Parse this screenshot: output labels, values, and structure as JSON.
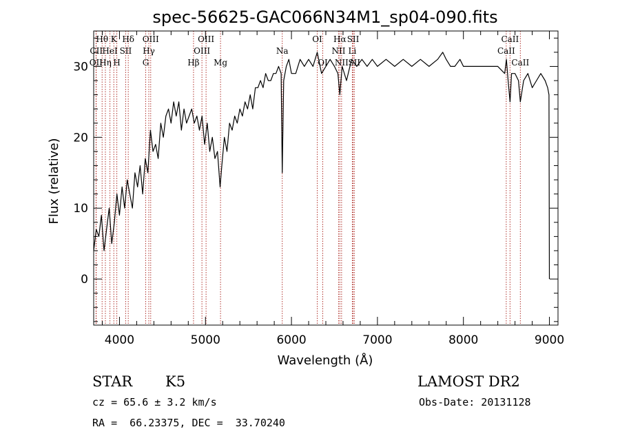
{
  "colors": {
    "axes": "#000000",
    "spectrum": "#000000",
    "line_markers": "#b0302a",
    "background": "#ffffff"
  },
  "chart_data": {
    "type": "line",
    "title": "spec-56625-GAC066N34M1_sp04-090.fits",
    "xlabel": "Wavelength (Å)",
    "ylabel": "Flux (relative)",
    "xlim": [
      3700,
      9100
    ],
    "ylim": [
      -6.5,
      35
    ],
    "x_ticks": [
      4000,
      5000,
      6000,
      7000,
      8000,
      9000
    ],
    "y_ticks": [
      0,
      10,
      20,
      30
    ],
    "x_minor_step": 200,
    "y_minor_step": 2,
    "grid": false,
    "series": [
      {
        "x": [
          3700,
          3730,
          3760,
          3790,
          3820,
          3850,
          3880,
          3910,
          3940,
          3970,
          4000,
          4030,
          4060,
          4090,
          4120,
          4150,
          4180,
          4210,
          4240,
          4270,
          4300,
          4330,
          4360,
          4390,
          4420,
          4450,
          4480,
          4510,
          4540,
          4570,
          4600,
          4630,
          4660,
          4690,
          4720,
          4750,
          4780,
          4810,
          4840,
          4870,
          4900,
          4930,
          4960,
          4990,
          5020,
          5050,
          5080,
          5110,
          5140,
          5170,
          5190,
          5220,
          5250,
          5280,
          5310,
          5340,
          5370,
          5400,
          5430,
          5460,
          5490,
          5520,
          5550,
          5580,
          5610,
          5640,
          5670,
          5700,
          5730,
          5760,
          5790,
          5820,
          5850,
          5880,
          5893,
          5910,
          5940,
          5970,
          6000,
          6050,
          6100,
          6150,
          6200,
          6250,
          6300,
          6350,
          6400,
          6450,
          6500,
          6540,
          6563,
          6590,
          6640,
          6700,
          6760,
          6820,
          6880,
          6940,
          7000,
          7100,
          7200,
          7300,
          7400,
          7500,
          7600,
          7700,
          7760,
          7800,
          7850,
          7900,
          7960,
          8000,
          8100,
          8200,
          8300,
          8400,
          8480,
          8500,
          8520,
          8542,
          8560,
          8600,
          8640,
          8662,
          8700,
          8750,
          8800,
          8850,
          8900,
          8950,
          8980,
          8995,
          9000
        ],
        "y": [
          4,
          7,
          6,
          9,
          4,
          7,
          10,
          5,
          8,
          12,
          9,
          13,
          10,
          14,
          12,
          10,
          15,
          13,
          16,
          12,
          17,
          15,
          21,
          18,
          19,
          17,
          22,
          20,
          23,
          24,
          22,
          25,
          23,
          25,
          21,
          24,
          22,
          23,
          24,
          22,
          23,
          21,
          23,
          19,
          22,
          18,
          20,
          17,
          18,
          13,
          16,
          20,
          18,
          22,
          21,
          23,
          22,
          24,
          23,
          25,
          24,
          26,
          24,
          27,
          27,
          28,
          27,
          29,
          28,
          28,
          29,
          29,
          30,
          29,
          15,
          28,
          30,
          31,
          29,
          29,
          31,
          30,
          31,
          30,
          32,
          29,
          30,
          31,
          30,
          29,
          26,
          30,
          28,
          31,
          30,
          31,
          30,
          31,
          30,
          31,
          30,
          31,
          30,
          31,
          30,
          31,
          32,
          31,
          30,
          30,
          31,
          30,
          30,
          30,
          30,
          30,
          29,
          31,
          28,
          25,
          29,
          29,
          28,
          25,
          28,
          29,
          27,
          28,
          29,
          28,
          27,
          26,
          0
        ]
      }
    ],
    "spectral_lines": [
      {
        "name": "Hθ",
        "wave": 3798,
        "row": 1
      },
      {
        "name": "CII",
        "wave": 3730,
        "row": 2
      },
      {
        "name": "OII",
        "wave": 3727,
        "row": 3
      },
      {
        "name": "Hη",
        "wave": 3836,
        "row": 3
      },
      {
        "name": "HeI",
        "wave": 3889,
        "row": 2
      },
      {
        "name": "K",
        "wave": 3934,
        "row": 1
      },
      {
        "name": "H",
        "wave": 3969,
        "row": 3
      },
      {
        "name": "SII",
        "wave": 4072,
        "row": 2
      },
      {
        "name": "Hδ",
        "wave": 4102,
        "row": 1
      },
      {
        "name": "OIII",
        "wave": 4363,
        "row": 1
      },
      {
        "name": "Hγ",
        "wave": 4341,
        "row": 2
      },
      {
        "name": "G",
        "wave": 4305,
        "row": 3
      },
      {
        "name": "Hβ",
        "wave": 4861,
        "row": 3
      },
      {
        "name": "OIII",
        "wave": 5007,
        "row": 1
      },
      {
        "name": "OIII",
        "wave": 4959,
        "row": 2
      },
      {
        "name": "Mg",
        "wave": 5175,
        "row": 3
      },
      {
        "name": "Na",
        "wave": 5893,
        "row": 2
      },
      {
        "name": "OI",
        "wave": 6300,
        "row": 1
      },
      {
        "name": "OI",
        "wave": 6364,
        "row": 3
      },
      {
        "name": "Hα",
        "wave": 6563,
        "row": 1
      },
      {
        "name": "NII",
        "wave": 6548,
        "row": 2
      },
      {
        "name": "NII",
        "wave": 6583,
        "row": 3
      },
      {
        "name": "SII",
        "wave": 6717,
        "row": 1
      },
      {
        "name": "Li",
        "wave": 6708,
        "row": 2
      },
      {
        "name": "SII",
        "wave": 6731,
        "row": 3
      },
      {
        "name": "CaII",
        "wave": 8542,
        "row": 1
      },
      {
        "name": "CaII",
        "wave": 8498,
        "row": 2
      },
      {
        "name": "CaII",
        "wave": 8662,
        "row": 3
      }
    ]
  },
  "info": {
    "class_label": "STAR",
    "subclass": "K5",
    "survey": "LAMOST DR2",
    "cz_line": "cz = 65.6 ± 3.2 km/s",
    "obs_date_line": "Obs-Date: 20131128",
    "coords_line": "RA =  66.23375, DEC =  33.70240"
  }
}
